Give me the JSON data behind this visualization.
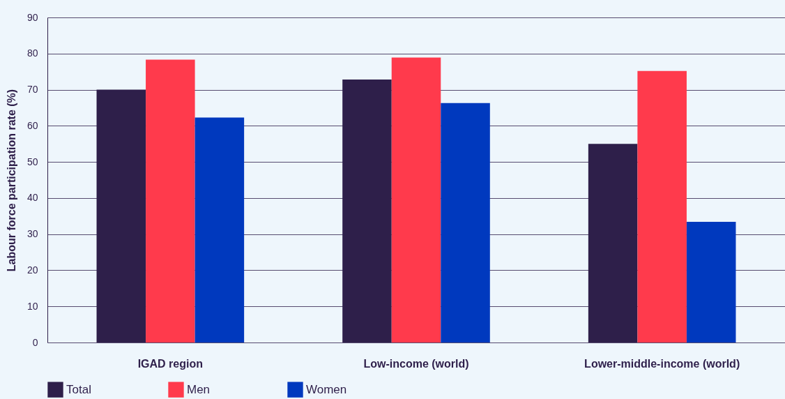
{
  "chart_data": {
    "type": "bar",
    "ylabel": "Labour force participation rate (%)",
    "categories": [
      "IGAD region",
      "Low-income (world)",
      "Lower-middle-income (world)"
    ],
    "series": [
      {
        "name": "Total",
        "color": "#2e1f4a",
        "values": [
          70.0,
          72.8,
          55.0
        ]
      },
      {
        "name": "Men",
        "color": "#ff3a4c",
        "values": [
          78.3,
          78.9,
          75.2
        ]
      },
      {
        "name": "Women",
        "color": "#0039be",
        "values": [
          62.3,
          66.3,
          33.4
        ]
      }
    ],
    "ylim": [
      0,
      90
    ],
    "yticks": [
      0,
      10,
      20,
      30,
      40,
      50,
      60,
      70,
      80,
      90
    ],
    "grid": "y",
    "legend": "bottom"
  }
}
